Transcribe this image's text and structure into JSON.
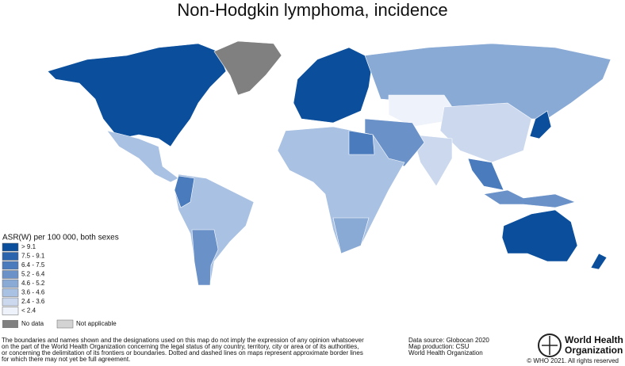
{
  "title": "Non-Hodgkin lymphoma, incidence",
  "legend": {
    "title": "ASR(W) per 100 000, both sexes",
    "classes": [
      {
        "label": "> 9.1",
        "color": "#0b4f9c"
      },
      {
        "label": "7.5 - 9.1",
        "color": "#2a64ad"
      },
      {
        "label": "6.4 - 7.5",
        "color": "#4a7bbd"
      },
      {
        "label": "5.2 - 6.4",
        "color": "#6a92c9"
      },
      {
        "label": "4.6 - 5.2",
        "color": "#8aaad6"
      },
      {
        "label": "3.6 - 4.6",
        "color": "#a9c1e2"
      },
      {
        "label": "2.4 - 3.6",
        "color": "#cbd8ee"
      },
      {
        "label": "< 2.4",
        "color": "#eef2fa"
      }
    ],
    "no_data": {
      "label": "No data",
      "color": "#808080"
    },
    "not_applicable": {
      "label": "Not applicable",
      "color": "#d3d3d3"
    }
  },
  "disclaimer": [
    "The boundaries and names shown and the designations used on this map do not imply the expression of any opinion whatsoever",
    "on the part of the World Health Organization concerning the legal status of any country, territory, city or area or of its authorities,",
    "or concerning the delimitation of its frontiers or boundaries. Dotted and dashed lines on maps represent approximate border lines",
    "for which there may not yet be full agreement."
  ],
  "credits": [
    "Data source: Globocan 2020",
    "Map production: CSU",
    "World Health Organization"
  ],
  "logo": [
    "World Health",
    "Organization"
  ],
  "copyright": "© WHO 2021. All rights reserved"
}
